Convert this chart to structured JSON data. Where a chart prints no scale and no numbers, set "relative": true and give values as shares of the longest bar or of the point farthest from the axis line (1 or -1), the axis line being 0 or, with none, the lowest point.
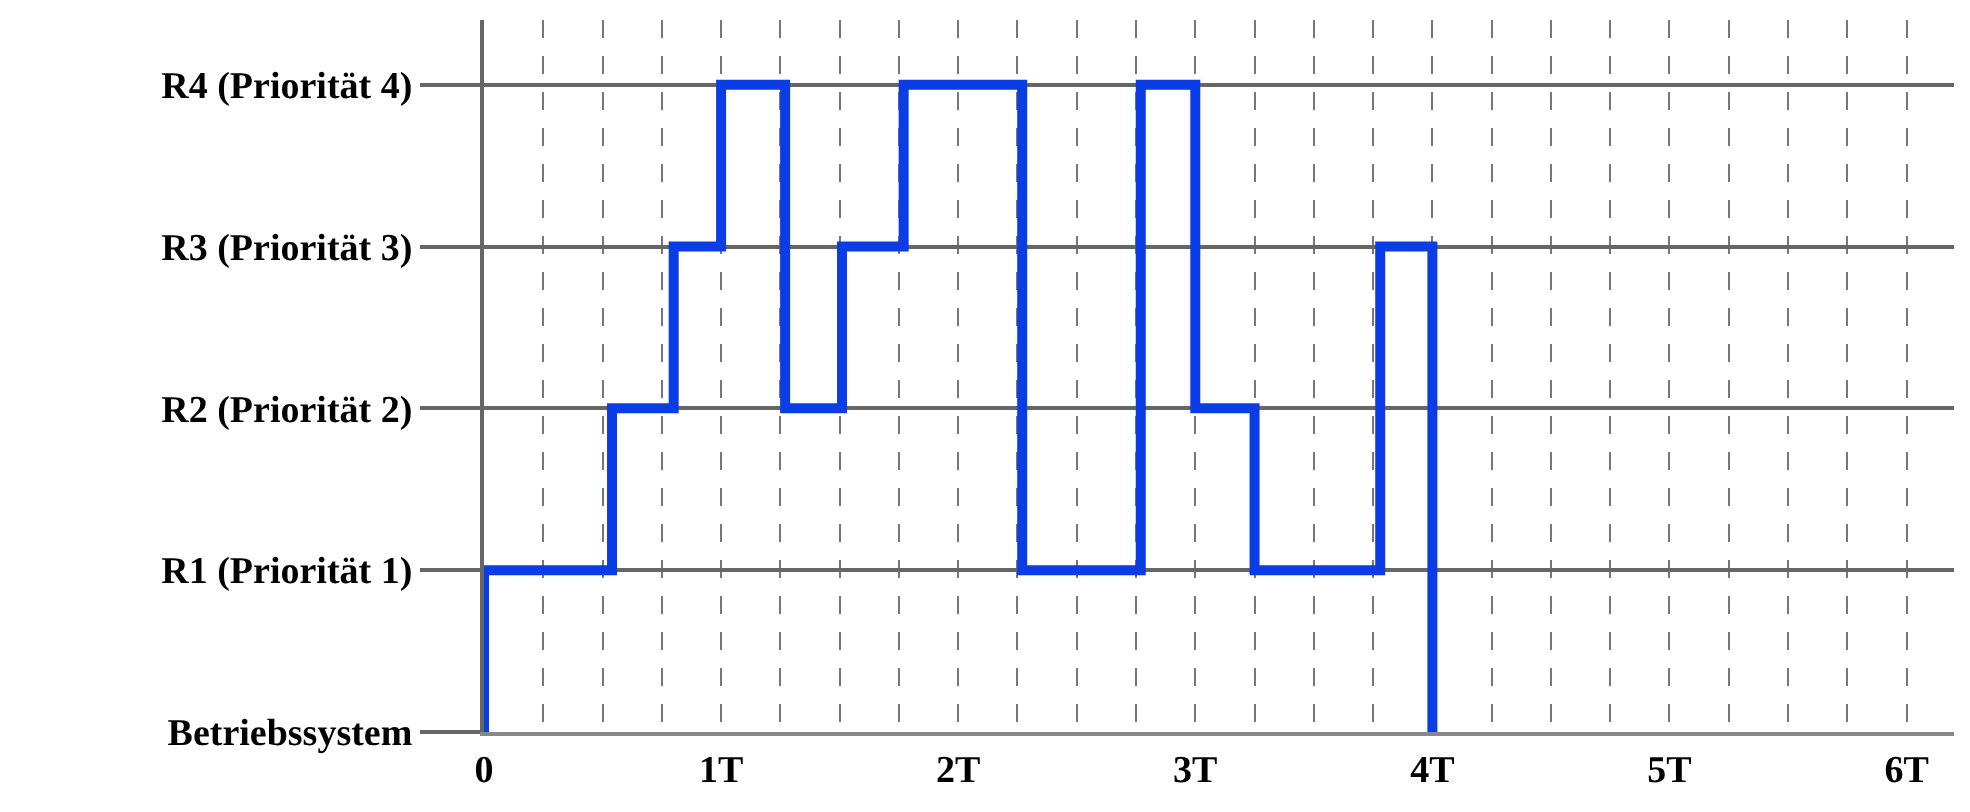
{
  "chart_data": {
    "type": "step",
    "x": [
      0,
      0,
      0.54,
      0.8,
      1.0,
      1.27,
      1.51,
      1.77,
      2.27,
      2.77,
      3.0,
      3.25,
      3.78,
      4.0
    ],
    "series": [
      {
        "color": "#0a3de6",
        "values": [
          0,
          0.25,
          0.5,
          0.75,
          1,
          0.5,
          0.75,
          1,
          0.25,
          1,
          0.5,
          0.25,
          0.75,
          0
        ]
      }
    ],
    "relative": true,
    "xlim": [
      0,
      6.2
    ],
    "xticks": [
      {
        "value": 0,
        "label": "0"
      },
      {
        "value": 0.25,
        "label": null
      },
      {
        "value": 0.5,
        "label": null
      },
      {
        "value": 0.75,
        "label": null
      },
      {
        "value": 1,
        "label": "1T"
      },
      {
        "value": 1.25,
        "label": null
      },
      {
        "value": 1.5,
        "label": null
      },
      {
        "value": 1.75,
        "label": null
      },
      {
        "value": 2,
        "label": "2T"
      },
      {
        "value": 2.25,
        "label": null
      },
      {
        "value": 2.5,
        "label": null
      },
      {
        "value": 2.75,
        "label": null
      },
      {
        "value": 3,
        "label": "3T"
      },
      {
        "value": 3.25,
        "label": null
      },
      {
        "value": 3.5,
        "label": null
      },
      {
        "value": 3.75,
        "label": null
      },
      {
        "value": 4,
        "label": "4T"
      },
      {
        "value": 4.25,
        "label": null
      },
      {
        "value": 4.5,
        "label": null
      },
      {
        "value": 4.75,
        "label": null
      },
      {
        "value": 5,
        "label": "5T"
      },
      {
        "value": 5.25,
        "label": null
      },
      {
        "value": 5.5,
        "label": null
      },
      {
        "value": 5.75,
        "label": null
      },
      {
        "value": 6,
        "label": "6T"
      }
    ],
    "annotations": [
      "Betriebssystem",
      "R1 (Priorität 1)",
      "R2 (Priorität 2)",
      "R3 (Priorität 3)",
      "R4 (Priorität 4)"
    ],
    "grid": true,
    "marker": "none",
    "line_style": "solid"
  }
}
